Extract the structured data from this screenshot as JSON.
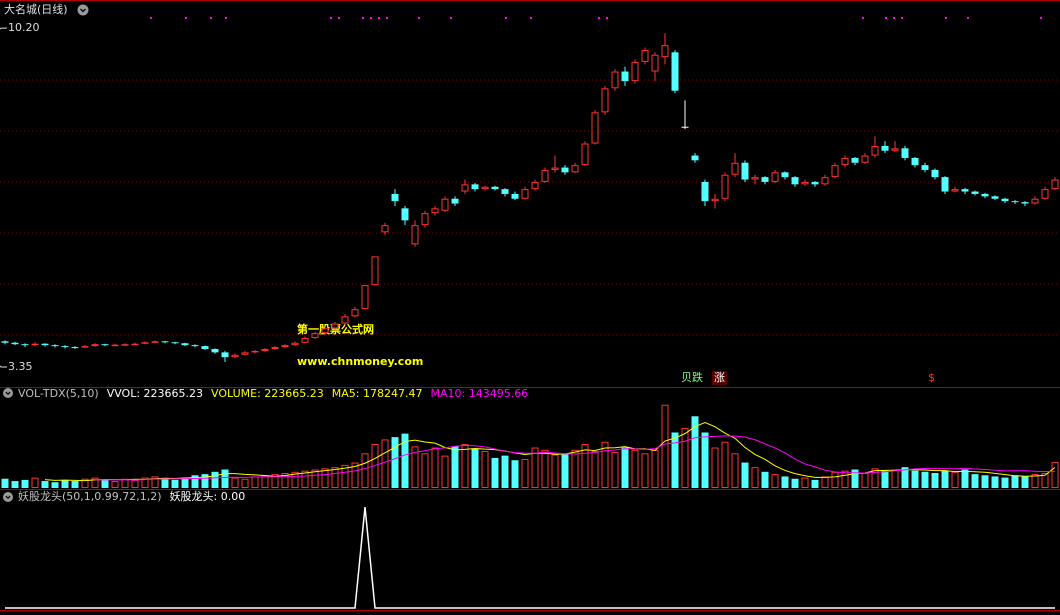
{
  "chart_data": [
    {
      "type": "candlestick",
      "title": "大名城(日线)",
      "up_color": "#ff3232",
      "down_color": "#54ffff",
      "flat_color": "#ffffff",
      "ylim": [
        2.87,
        10.89
      ],
      "max_marker": {
        "value": 10.2,
        "label": "10.20"
      },
      "min_marker": {
        "value": 3.35,
        "label": "3.35"
      },
      "annotations": [
        "第一股票公式网",
        "www.chnmoney.com"
      ],
      "signals": [
        "贝跌",
        "涨",
        "$"
      ],
      "ohlc": [
        [
          3.78,
          3.8,
          3.72,
          3.75
        ],
        [
          3.75,
          3.77,
          3.7,
          3.72
        ],
        [
          3.72,
          3.74,
          3.66,
          3.7
        ],
        [
          3.7,
          3.76,
          3.68,
          3.73
        ],
        [
          3.73,
          3.74,
          3.67,
          3.7
        ],
        [
          3.7,
          3.72,
          3.65,
          3.68
        ],
        [
          3.68,
          3.7,
          3.63,
          3.66
        ],
        [
          3.66,
          3.68,
          3.62,
          3.65
        ],
        [
          3.65,
          3.7,
          3.64,
          3.68
        ],
        [
          3.68,
          3.74,
          3.67,
          3.72
        ],
        [
          3.72,
          3.73,
          3.68,
          3.7
        ],
        [
          3.7,
          3.73,
          3.69,
          3.71
        ],
        [
          3.71,
          3.74,
          3.7,
          3.72
        ],
        [
          3.72,
          3.75,
          3.71,
          3.73
        ],
        [
          3.73,
          3.78,
          3.72,
          3.76
        ],
        [
          3.76,
          3.8,
          3.75,
          3.78
        ],
        [
          3.78,
          3.79,
          3.74,
          3.76
        ],
        [
          3.76,
          3.77,
          3.72,
          3.74
        ],
        [
          3.74,
          3.75,
          3.68,
          3.7
        ],
        [
          3.7,
          3.72,
          3.66,
          3.68
        ],
        [
          3.68,
          3.69,
          3.6,
          3.62
        ],
        [
          3.62,
          3.63,
          3.52,
          3.55
        ],
        [
          3.55,
          3.58,
          3.35,
          3.45
        ],
        [
          3.45,
          3.53,
          3.43,
          3.5
        ],
        [
          3.5,
          3.58,
          3.49,
          3.55
        ],
        [
          3.55,
          3.6,
          3.53,
          3.58
        ],
        [
          3.58,
          3.64,
          3.56,
          3.62
        ],
        [
          3.62,
          3.68,
          3.6,
          3.66
        ],
        [
          3.66,
          3.72,
          3.64,
          3.7
        ],
        [
          3.7,
          3.78,
          3.68,
          3.75
        ],
        [
          3.75,
          3.88,
          3.74,
          3.85
        ],
        [
          3.85,
          3.98,
          3.83,
          3.95
        ],
        [
          3.95,
          4.08,
          3.92,
          4.05
        ],
        [
          4.05,
          4.18,
          4.02,
          4.15
        ],
        [
          4.15,
          4.35,
          4.12,
          4.3
        ],
        [
          4.3,
          4.5,
          4.28,
          4.45
        ],
        [
          4.45,
          4.95,
          4.45,
          4.95
        ],
        [
          4.95,
          5.55,
          4.95,
          5.55
        ],
        [
          6.05,
          6.25,
          6.0,
          6.2
        ],
        [
          6.85,
          6.95,
          6.6,
          6.7
        ],
        [
          6.55,
          6.6,
          6.2,
          6.3
        ],
        [
          5.8,
          6.3,
          5.75,
          6.2
        ],
        [
          6.2,
          6.5,
          6.15,
          6.45
        ],
        [
          6.45,
          6.6,
          6.4,
          6.55
        ],
        [
          6.5,
          6.8,
          6.48,
          6.75
        ],
        [
          6.75,
          6.8,
          6.6,
          6.65
        ],
        [
          6.9,
          7.15,
          6.85,
          7.05
        ],
        [
          7.05,
          7.08,
          6.9,
          6.95
        ],
        [
          6.95,
          7.02,
          6.92,
          7.0
        ],
        [
          7.0,
          7.02,
          6.92,
          6.95
        ],
        [
          6.95,
          6.97,
          6.8,
          6.85
        ],
        [
          6.85,
          6.9,
          6.72,
          6.75
        ],
        [
          6.75,
          7.0,
          6.73,
          6.95
        ],
        [
          6.95,
          7.15,
          6.92,
          7.1
        ],
        [
          7.1,
          7.4,
          7.08,
          7.35
        ],
        [
          7.35,
          7.65,
          7.3,
          7.4
        ],
        [
          7.4,
          7.45,
          7.25,
          7.3
        ],
        [
          7.3,
          7.5,
          7.28,
          7.45
        ],
        [
          7.45,
          7.95,
          7.43,
          7.9
        ],
        [
          7.9,
          8.6,
          7.88,
          8.55
        ],
        [
          8.55,
          9.1,
          8.5,
          9.05
        ],
        [
          9.05,
          9.45,
          9.0,
          9.4
        ],
        [
          9.4,
          9.5,
          9.1,
          9.2
        ],
        [
          9.2,
          9.65,
          9.15,
          9.6
        ],
        [
          9.6,
          9.9,
          9.55,
          9.85
        ],
        [
          9.4,
          9.8,
          9.2,
          9.75
        ],
        [
          9.7,
          10.2,
          9.55,
          9.95
        ],
        [
          9.8,
          9.85,
          8.95,
          9.0
        ],
        [
          8.25,
          8.8,
          8.2,
          8.25
        ],
        [
          7.65,
          7.7,
          7.5,
          7.55
        ],
        [
          7.1,
          7.15,
          6.6,
          6.7
        ],
        [
          6.7,
          6.85,
          6.55,
          6.75
        ],
        [
          6.75,
          7.3,
          6.7,
          7.25
        ],
        [
          7.25,
          7.7,
          7.2,
          7.5
        ],
        [
          7.5,
          7.55,
          7.1,
          7.15
        ],
        [
          7.15,
          7.25,
          7.05,
          7.2
        ],
        [
          7.2,
          7.22,
          7.05,
          7.1
        ],
        [
          7.1,
          7.35,
          7.08,
          7.3
        ],
        [
          7.3,
          7.32,
          7.15,
          7.2
        ],
        [
          7.2,
          7.22,
          7.0,
          7.05
        ],
        [
          7.05,
          7.15,
          7.02,
          7.1
        ],
        [
          7.1,
          7.12,
          7.0,
          7.05
        ],
        [
          7.05,
          7.25,
          7.02,
          7.2
        ],
        [
          7.2,
          7.5,
          7.18,
          7.45
        ],
        [
          7.45,
          7.65,
          7.4,
          7.6
        ],
        [
          7.6,
          7.62,
          7.45,
          7.5
        ],
        [
          7.5,
          7.7,
          7.48,
          7.65
        ],
        [
          7.65,
          8.05,
          7.6,
          7.85
        ],
        [
          7.85,
          7.95,
          7.7,
          7.75
        ],
        [
          7.75,
          7.95,
          7.72,
          7.8
        ],
        [
          7.8,
          7.85,
          7.55,
          7.6
        ],
        [
          7.6,
          7.62,
          7.4,
          7.45
        ],
        [
          7.45,
          7.5,
          7.3,
          7.35
        ],
        [
          7.35,
          7.38,
          7.15,
          7.2
        ],
        [
          7.2,
          7.22,
          6.85,
          6.9
        ],
        [
          6.9,
          7.0,
          6.88,
          6.95
        ],
        [
          6.95,
          6.98,
          6.85,
          6.9
        ],
        [
          6.9,
          6.92,
          6.82,
          6.85
        ],
        [
          6.85,
          6.87,
          6.76,
          6.8
        ],
        [
          6.8,
          6.82,
          6.72,
          6.75
        ],
        [
          6.75,
          6.77,
          6.66,
          6.7
        ],
        [
          6.7,
          6.72,
          6.64,
          6.68
        ],
        [
          6.68,
          6.7,
          6.6,
          6.65
        ],
        [
          6.65,
          6.8,
          6.63,
          6.75
        ],
        [
          6.75,
          7.0,
          6.73,
          6.95
        ],
        [
          6.95,
          7.2,
          6.93,
          7.15
        ]
      ]
    },
    {
      "type": "volume",
      "ylim": [
        0,
        830000
      ],
      "legend": [
        {
          "text": "VOL-TDX(5,10)",
          "color": "#c0c0c0"
        },
        {
          "text": "VVOL: 223665.23",
          "color": "#ffffff"
        },
        {
          "text": "VOLUME: 223665.23",
          "color": "#ffff00"
        },
        {
          "text": "MA5: 178247.47",
          "color": "#ffff00"
        },
        {
          "text": "MA10: 143495.66",
          "color": "#ff00ff"
        }
      ],
      "values": [
        80000,
        60000,
        70000,
        90000,
        60000,
        50000,
        70000,
        60000,
        80000,
        90000,
        70000,
        60000,
        80000,
        70000,
        90000,
        100000,
        80000,
        70000,
        90000,
        110000,
        120000,
        140000,
        160000,
        90000,
        80000,
        100000,
        110000,
        120000,
        130000,
        140000,
        150000,
        160000,
        170000,
        180000,
        200000,
        220000,
        300000,
        380000,
        420000,
        440000,
        470000,
        360000,
        300000,
        350000,
        280000,
        360000,
        380000,
        340000,
        320000,
        260000,
        280000,
        240000,
        250000,
        350000,
        330000,
        290000,
        300000,
        330000,
        380000,
        320000,
        400000,
        310000,
        350000,
        330000,
        300000,
        330000,
        720000,
        480000,
        520000,
        620000,
        480000,
        350000,
        400000,
        300000,
        220000,
        180000,
        140000,
        120000,
        100000,
        80000,
        90000,
        70000,
        100000,
        140000,
        150000,
        160000,
        130000,
        170000,
        150000,
        160000,
        180000,
        150000,
        140000,
        130000,
        150000,
        140000,
        160000,
        120000,
        110000,
        100000,
        90000,
        110000,
        100000,
        120000,
        130000,
        223665.23
      ],
      "series": [
        {
          "color": "#ffff00",
          "values": [
            null,
            null,
            null,
            null,
            72000,
            66000,
            68000,
            66000,
            64000,
            70000,
            74000,
            72000,
            72000,
            76000,
            74000,
            80000,
            84000,
            82000,
            86000,
            90000,
            94000,
            106000,
            124000,
            124000,
            118000,
            114000,
            108000,
            100000,
            108000,
            120000,
            130000,
            140000,
            150000,
            160000,
            172000,
            186000,
            214000,
            256000,
            304000,
            352000,
            402000,
            414000,
            398000,
            388000,
            350000,
            330000,
            334000,
            342000,
            336000,
            332000,
            320000,
            304000,
            290000,
            300000,
            302000,
            292000,
            294000,
            310000,
            330000,
            324000,
            346000,
            348000,
            358000,
            338000,
            338000,
            324000,
            406000,
            432000,
            470000,
            530000,
            566000,
            530000,
            474000,
            430000,
            350000,
            290000,
            248000,
            192000,
            152000,
            124000,
            106000,
            92000,
            92000,
            96000,
            110000,
            124000,
            130000,
            150000,
            152000,
            154000,
            158000,
            158000,
            156000,
            150000,
            150000,
            142000,
            144000,
            140000,
            136000,
            126000,
            116000,
            106000,
            102000,
            104000,
            110000,
            178247.47
          ]
        },
        {
          "color": "#ff00ff",
          "values": [
            null,
            null,
            null,
            null,
            null,
            null,
            null,
            null,
            null,
            71000,
            70000,
            70000,
            71000,
            69000,
            72000,
            77000,
            78000,
            79000,
            80000,
            82000,
            84000,
            88000,
            91000,
            93000,
            92000,
            95000,
            96000,
            97000,
            98000,
            101000,
            104000,
            110000,
            116000,
            125000,
            136000,
            148000,
            168000,
            194000,
            223000,
            253000,
            286000,
            308000,
            322000,
            339000,
            347000,
            361000,
            369000,
            365000,
            355000,
            337000,
            318000,
            306000,
            301000,
            300000,
            310000,
            303000,
            295000,
            294000,
            300000,
            307000,
            322000,
            329000,
            339000,
            337000,
            334000,
            340000,
            380000,
            390000,
            404000,
            434000,
            442000,
            446000,
            451000,
            448000,
            440000,
            417000,
            382000,
            346000,
            304000,
            250000,
            208000,
            184000,
            154000,
            138000,
            133000,
            131000,
            130000,
            135000,
            140000,
            148000,
            157000,
            165000,
            169000,
            168000,
            168000,
            166000,
            169000,
            164000,
            160000,
            154000,
            148000,
            149000,
            149000,
            145000,
            143000,
            143495.66
          ]
        }
      ]
    },
    {
      "type": "line",
      "color": "#ffffff",
      "ylim": [
        0,
        1.15
      ],
      "legend": [
        {
          "text": "妖股龙头(50,1,0.99,72,1,2)",
          "color": "#c0c0c0"
        },
        {
          "text": "妖股龙头: 0.00",
          "color": "#ffffff"
        }
      ],
      "values": [
        0,
        0,
        0,
        0,
        0,
        0,
        0,
        0,
        0,
        0,
        0,
        0,
        0,
        0,
        0,
        0,
        0,
        0,
        0,
        0,
        0,
        0,
        0,
        0,
        0,
        0,
        0,
        0,
        0,
        0,
        0,
        0,
        0,
        0,
        0,
        0,
        1,
        0,
        0,
        0,
        0,
        0,
        0,
        0,
        0,
        0,
        0,
        0,
        0,
        0,
        0,
        0,
        0,
        0,
        0,
        0,
        0,
        0,
        0,
        0,
        0,
        0,
        0,
        0,
        0,
        0,
        0,
        0,
        0,
        0,
        0,
        0,
        0,
        0,
        0,
        0,
        0,
        0,
        0,
        0,
        0,
        0,
        0,
        0,
        0,
        0,
        0,
        0,
        0,
        0,
        0,
        0,
        0,
        0,
        0,
        0,
        0,
        0,
        0,
        0,
        0,
        0,
        0,
        0,
        0,
        0
      ]
    }
  ]
}
